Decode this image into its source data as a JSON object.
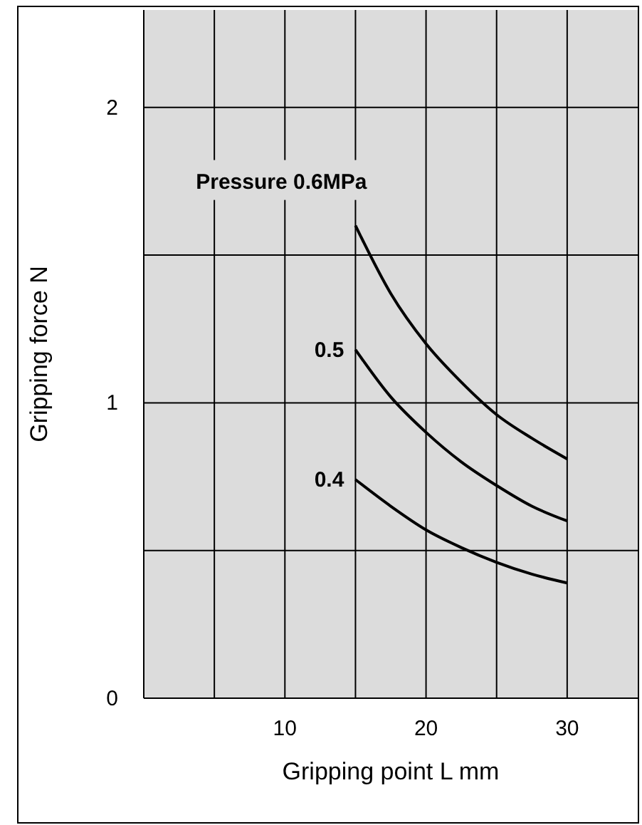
{
  "chart_data": {
    "type": "line",
    "xlabel": "Gripping point   L mm",
    "ylabel": "Gripping force   N",
    "xlim": [
      0,
      35
    ],
    "xticks": [
      {
        "value": 5,
        "label": null
      },
      10,
      {
        "value": 15,
        "label": null
      },
      20,
      {
        "value": 25,
        "label": null
      },
      30
    ],
    "ylim": [
      0,
      2.33
    ],
    "yticks": [
      0,
      {
        "value": 0.5,
        "label": null
      },
      1,
      {
        "value": 1.5,
        "label": null
      },
      2
    ],
    "grid": true,
    "legend": false,
    "marker": "none",
    "line_style": "solid",
    "x": [
      15,
      17.5,
      20,
      22.5,
      25,
      27.5,
      30
    ],
    "series": [
      {
        "name": "Pressure 0.6MPa",
        "color": "#000000",
        "values": [
          1.6,
          1.37,
          1.2,
          1.07,
          0.96,
          0.88,
          0.81
        ]
      },
      {
        "name": "0.5",
        "color": "#000000",
        "values": [
          1.18,
          1.02,
          0.9,
          0.8,
          0.72,
          0.65,
          0.6
        ]
      },
      {
        "name": "0.4",
        "color": "#000000",
        "values": [
          0.74,
          0.65,
          0.57,
          0.51,
          0.46,
          0.42,
          0.39
        ]
      }
    ]
  }
}
